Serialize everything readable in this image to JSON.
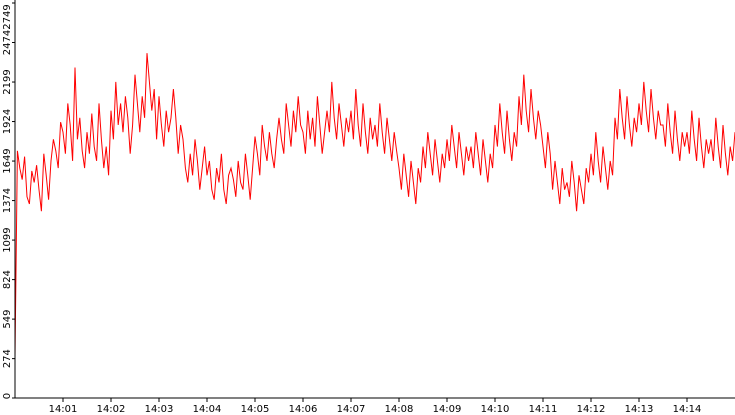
{
  "chart_data": {
    "type": "line",
    "title": "",
    "xlabel": "",
    "ylabel": "",
    "x_unit": "time HH:MM",
    "xlim": [
      "14:00:00",
      "14:15:00"
    ],
    "ylim": [
      0,
      2749
    ],
    "yticks": [
      0,
      274,
      549,
      824,
      1099,
      1374,
      1649,
      1924,
      2199,
      2474,
      2749
    ],
    "xticks": [
      "14:01",
      "14:02",
      "14:03",
      "14:04",
      "14:05",
      "14:06",
      "14:07",
      "14:08",
      "14:09",
      "14:10",
      "14:11",
      "14:12",
      "14:13",
      "14:14"
    ],
    "grid": false,
    "legend": "none",
    "line_color": "#ff0000",
    "axis_color": "#000000",
    "series": [
      {
        "sample_interval_seconds": 3,
        "start_time": "14:00:00",
        "y": [
          290,
          1720,
          1600,
          1520,
          1680,
          1400,
          1350,
          1580,
          1500,
          1620,
          1450,
          1300,
          1700,
          1550,
          1380,
          1650,
          1800,
          1720,
          1600,
          1920,
          1850,
          1700,
          2050,
          1900,
          1650,
          2300,
          1800,
          1950,
          1720,
          1600,
          1850,
          1700,
          1980,
          1750,
          1650,
          2050,
          1800,
          1600,
          1750,
          1550,
          2000,
          1800,
          2200,
          1900,
          2050,
          1850,
          2100,
          1950,
          1700,
          1900,
          2250,
          2050,
          1850,
          2100,
          1950,
          2400,
          2200,
          2000,
          2150,
          1800,
          2100,
          1900,
          1750,
          2000,
          1850,
          1950,
          2150,
          1950,
          1700,
          1900,
          1800,
          1600,
          1500,
          1700,
          1550,
          1800,
          1650,
          1450,
          1600,
          1750,
          1550,
          1650,
          1450,
          1380,
          1600,
          1500,
          1700,
          1450,
          1350,
          1550,
          1600,
          1520,
          1400,
          1650,
          1500,
          1450,
          1700,
          1550,
          1380,
          1600,
          1820,
          1700,
          1550,
          1900,
          1750,
          1650,
          1850,
          1700,
          1600,
          1800,
          1950,
          1800,
          1700,
          2050,
          1900,
          1750,
          2000,
          1850,
          2100,
          1900,
          1850,
          1700,
          2000,
          1800,
          1950,
          1750,
          2100,
          1900,
          1700,
          1850,
          2000,
          1850,
          2200,
          1950,
          1800,
          2050,
          1900,
          1750,
          1950,
          1850,
          2000,
          1800,
          2150,
          1900,
          1750,
          2050,
          1850,
          1700,
          1950,
          1800,
          1900,
          1750,
          2050,
          1850,
          1700,
          1950,
          1800,
          1650,
          1850,
          1720,
          1600,
          1450,
          1700,
          1550,
          1400,
          1650,
          1500,
          1350,
          1600,
          1500,
          1750,
          1600,
          1850,
          1700,
          1550,
          1800,
          1650,
          1500,
          1700,
          1600,
          1800,
          1650,
          1900,
          1750,
          1600,
          1850,
          1700,
          1550,
          1750,
          1650,
          1750,
          1600,
          1850,
          1700,
          1550,
          1800,
          1650,
          1500,
          1700,
          1600,
          1900,
          1750,
          2050,
          1850,
          1700,
          2000,
          1800,
          1650,
          1850,
          1750,
          2100,
          1900,
          2250,
          2000,
          1850,
          2150,
          1950,
          1800,
          2000,
          1900,
          1750,
          1600,
          1850,
          1700,
          1450,
          1650,
          1500,
          1350,
          1600,
          1450,
          1500,
          1400,
          1650,
          1500,
          1300,
          1550,
          1450,
          1350,
          1600,
          1500,
          1700,
          1550,
          1850,
          1650,
          1500,
          1750,
          1600,
          1450,
          1650,
          1550,
          1950,
          1800,
          2150,
          1950,
          1800,
          2100,
          1900,
          1750,
          1950,
          1850,
          2050,
          1900,
          2200,
          2000,
          1850,
          2150,
          1950,
          1800,
          2000,
          1900,
          1900,
          1750,
          2050,
          1850,
          1700,
          2000,
          1800,
          1650,
          1850,
          1750,
          1850,
          1700,
          2000,
          1800,
          1650,
          1950,
          1750,
          1600,
          1800,
          1700,
          1800,
          1650,
          1950,
          1750,
          1600,
          1900,
          1700,
          1550,
          1750,
          1650,
          1850,
          1700,
          2000,
          1800,
          1650,
          1950,
          1750,
          1600,
          1800,
          1700
        ]
      }
    ]
  }
}
